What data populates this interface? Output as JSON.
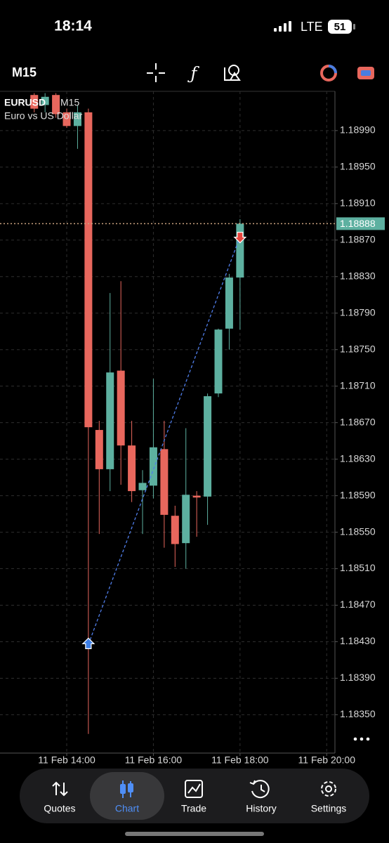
{
  "status_bar": {
    "time": "18:14",
    "network": "LTE",
    "battery": "51"
  },
  "toolbar": {
    "timeframe": "M15"
  },
  "chart_data": {
    "type": "candlestick",
    "symbol": "EURUSD",
    "timeframe": "M15",
    "description": "Euro vs US Dollar",
    "x": [
      13.25,
      13.5,
      13.75,
      14,
      14.25,
      14.5,
      14.75,
      15,
      15.25,
      15.5,
      15.75,
      16,
      16.25,
      16.5,
      16.75,
      17,
      17.25,
      17.5,
      17.75,
      18
    ],
    "open": [
      1.19029,
      1.19018,
      1.19029,
      1.1901,
      1.18995,
      1.1901,
      1.18662,
      1.18619,
      1.18727,
      1.18645,
      1.18596,
      1.18601,
      1.18641,
      1.18568,
      1.18538,
      1.1859,
      1.18589,
      1.18702,
      1.18773,
      1.18829
    ],
    "high": [
      1.19031,
      1.19031,
      1.19031,
      1.19014,
      1.19018,
      1.19014,
      1.18672,
      1.18812,
      1.18825,
      1.18672,
      1.18618,
      1.18718,
      1.18672,
      1.18579,
      1.18664,
      1.18595,
      1.18702,
      1.18773,
      1.18833,
      1.18893
    ],
    "low": [
      1.1901,
      1.1901,
      1.19004,
      1.18993,
      1.1897,
      1.18329,
      1.18548,
      1.18595,
      1.18602,
      1.18583,
      1.18548,
      1.18587,
      1.18533,
      1.18512,
      1.1851,
      1.18545,
      1.18558,
      1.18698,
      1.1875,
      1.18772
    ],
    "close": [
      1.19014,
      1.19027,
      1.19008,
      1.18995,
      1.1901,
      1.18665,
      1.18619,
      1.18725,
      1.18645,
      1.18595,
      1.18604,
      1.18643,
      1.18569,
      1.18537,
      1.18591,
      1.18588,
      1.18699,
      1.18772,
      1.18829,
      1.18888
    ],
    "up_color": "#5db0a0",
    "down_color": "#e8675d",
    "current_price": 1.18888,
    "current_price_color": "#c9a37f",
    "trades": [
      {
        "x": 14.5,
        "y": 1.18427
      },
      {
        "x": 18,
        "y": 1.18874
      }
    ],
    "xlim": [
      12.46,
      20.19
    ],
    "xticks": [
      {
        "value": 14,
        "label": "11 Feb 14:00"
      },
      {
        "value": 16,
        "label": "11 Feb 16:00"
      },
      {
        "value": 18,
        "label": "11 Feb 18:00"
      },
      {
        "value": 20,
        "label": "11 Feb 20:00"
      }
    ],
    "ylim": [
      1.18308,
      1.19033
    ],
    "yticks": [
      {
        "value": 1.1835,
        "label": "1.18350"
      },
      {
        "value": 1.1839,
        "label": "1.18390"
      },
      {
        "value": 1.1843,
        "label": "1.18430"
      },
      {
        "value": 1.1847,
        "label": "1.18470"
      },
      {
        "value": 1.1851,
        "label": "1.18510"
      },
      {
        "value": 1.1855,
        "label": "1.18550"
      },
      {
        "value": 1.1859,
        "label": "1.18590"
      },
      {
        "value": 1.1863,
        "label": "1.18630"
      },
      {
        "value": 1.1867,
        "label": "1.18670"
      },
      {
        "value": 1.1871,
        "label": "1.18710"
      },
      {
        "value": 1.1875,
        "label": "1.18750"
      },
      {
        "value": 1.1879,
        "label": "1.18790"
      },
      {
        "value": 1.1883,
        "label": "1.18830"
      },
      {
        "value": 1.1887,
        "label": "1.18870"
      },
      {
        "value": 1.1891,
        "label": "1.18910"
      },
      {
        "value": 1.1895,
        "label": "1.18950"
      },
      {
        "value": 1.1899,
        "label": "1.18990"
      }
    ],
    "grid": true
  },
  "nav": {
    "items": [
      "Quotes",
      "Chart",
      "Trade",
      "History",
      "Settings"
    ]
  }
}
